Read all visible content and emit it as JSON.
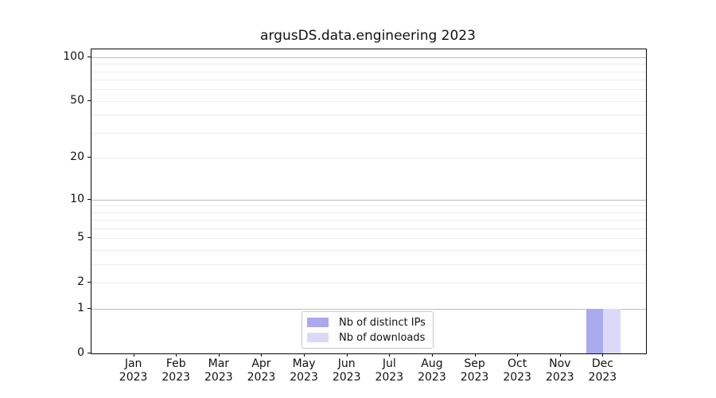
{
  "chart_data": {
    "type": "bar",
    "title": "argusDS.data.engineering 2023",
    "categories": [
      "Jan 2023",
      "Feb 2023",
      "Mar 2023",
      "Apr 2023",
      "May 2023",
      "Jun 2023",
      "Jul 2023",
      "Aug 2023",
      "Sep 2023",
      "Oct 2023",
      "Nov 2023",
      "Dec 2023"
    ],
    "series": [
      {
        "name": "Nb of distinct IPs",
        "color": "#a9a9ee",
        "values": [
          0,
          0,
          0,
          0,
          0,
          0,
          0,
          0,
          0,
          0,
          0,
          1
        ]
      },
      {
        "name": "Nb of downloads",
        "color": "#dadaf8",
        "values": [
          0,
          0,
          0,
          0,
          0,
          0,
          0,
          0,
          0,
          0,
          0,
          1
        ]
      }
    ],
    "xlabel": "",
    "ylabel": "",
    "yscale": "log1p",
    "ylim": [
      0,
      113
    ],
    "xlim": [
      -1,
      12
    ],
    "yticks": [
      0,
      1,
      2,
      5,
      10,
      20,
      50,
      100
    ],
    "grid": {
      "major_values": [
        1,
        10,
        100
      ],
      "minor_values": [
        2,
        3,
        4,
        5,
        6,
        7,
        8,
        9,
        20,
        30,
        40,
        50,
        60,
        70,
        80,
        90
      ],
      "major_color": "#bdbdbd",
      "minor_color": "#ebebeb"
    },
    "legend": {
      "position": "lower center"
    },
    "bar_width": 0.4,
    "bar_group_offsets": [
      -0.2,
      0.2
    ]
  }
}
